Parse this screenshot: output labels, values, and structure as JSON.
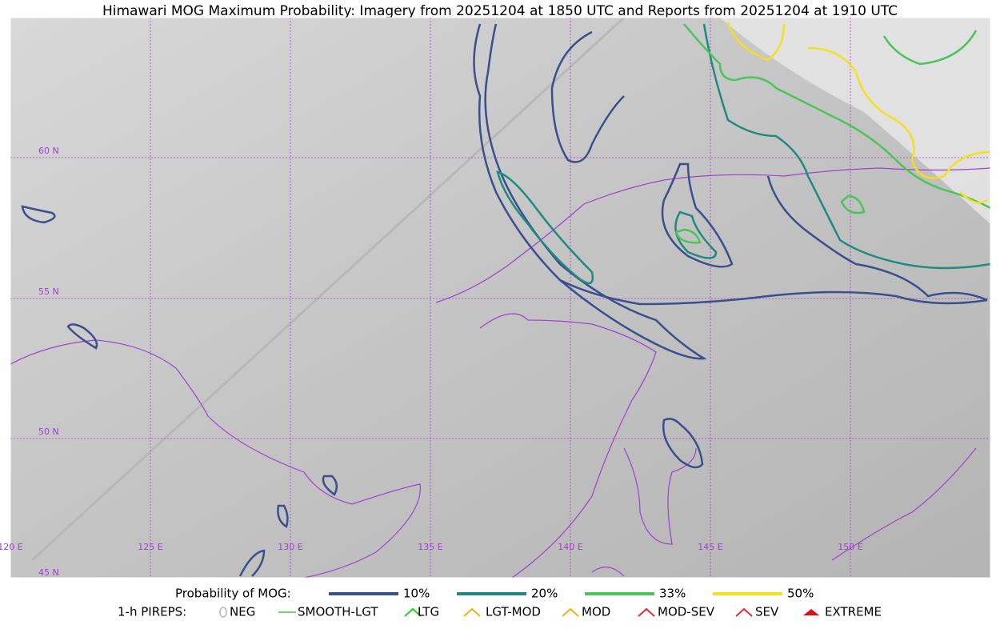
{
  "title": "Himawari MOG Maximum Probability: Imagery from 20251204 at 1850 UTC and Reports from 20251204 at 1910 UTC",
  "grid_labels": {
    "latitudes": [
      "60 N",
      "55 N",
      "50 N",
      "45 N"
    ],
    "longitudes": [
      "120 E",
      "125 E",
      "130 E",
      "135 E",
      "140 E",
      "145 E",
      "150 E"
    ]
  },
  "legend": {
    "probability": {
      "label": "Probability of MOG:",
      "items": [
        {
          "label": "10%",
          "color": "#3a4f8c"
        },
        {
          "label": "20%",
          "color": "#1f8a80"
        },
        {
          "label": "33%",
          "color": "#4cc45a"
        },
        {
          "label": "50%",
          "color": "#f5e020"
        }
      ]
    },
    "pireps": {
      "label": "1-h PIREPS:",
      "items": [
        {
          "label": "NEG",
          "color": "#b0b0f0"
        },
        {
          "label": "SMOOTH-LGT",
          "color": "#40d040"
        },
        {
          "label": "LTG",
          "color": "#20d020"
        },
        {
          "label": "LGT-MOD",
          "color": "#f0b020"
        },
        {
          "label": "MOD",
          "color": "#f0b020"
        },
        {
          "label": "MOD-SEV",
          "color": "#e03030"
        },
        {
          "label": "SEV",
          "color": "#e03030"
        },
        {
          "label": "EXTREME",
          "color": "#e01010"
        }
      ]
    }
  }
}
